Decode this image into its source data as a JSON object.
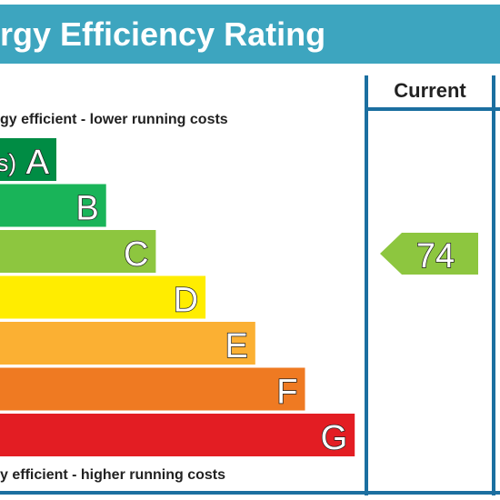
{
  "title": "rgy Efficiency Rating",
  "column_header": "Current",
  "top_note": "gy efficient - lower running costs",
  "bottom_note": "y efficient - higher running costs",
  "bands": [
    {
      "range": "s)",
      "letter": "A",
      "color": "#008c44"
    },
    {
      "letter": "B",
      "color": "#19b459"
    },
    {
      "letter": "C",
      "color": "#8dc63f"
    },
    {
      "letter": "D",
      "color": "#ffed00"
    },
    {
      "letter": "E",
      "color": "#fbb033"
    },
    {
      "letter": "F",
      "color": "#ef7a22"
    },
    {
      "letter": "G",
      "color": "#e31d23"
    }
  ],
  "current": {
    "value": 74,
    "color": "#8dc63f"
  }
}
